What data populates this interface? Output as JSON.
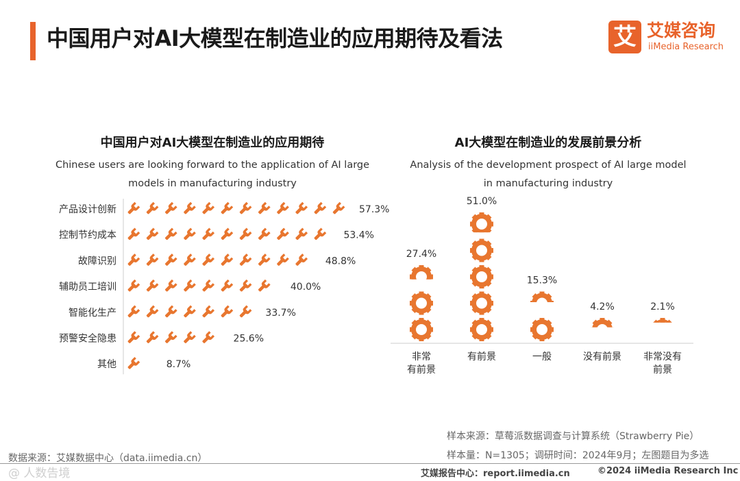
{
  "header": {
    "title": "中国用户对AI大模型在制造业的应用期待及看法",
    "logo_mark": "艾",
    "logo_cn": "艾媒咨询",
    "logo_en": "iiMedia Research"
  },
  "colors": {
    "accent": "#e8632b",
    "icon": "#e8762f",
    "axis": "#cccccc"
  },
  "chart_data": [
    {
      "type": "bar",
      "title": "中国用户对AI大模型在制造业的应用期待",
      "subtitle_line1": "Chinese users are looking forward to the application of AI large",
      "subtitle_line2": "models in manufacturing industry",
      "orientation": "horizontal",
      "marker": "wrench-icon",
      "categories": [
        "产品设计创新",
        "控制节约成本",
        "故障识别",
        "辅助员工培训",
        "智能化生产",
        "预警安全隐患",
        "其他"
      ],
      "values": [
        57.3,
        53.4,
        48.8,
        40.0,
        33.7,
        25.6,
        8.7
      ],
      "labels": [
        "57.3%",
        "53.4%",
        "48.8%",
        "40.0%",
        "33.7%",
        "25.6%",
        "8.7%"
      ],
      "unit": "%",
      "icon_unit": 4.7
    },
    {
      "type": "bar",
      "title": "AI大模型在制造业的发展前景分析",
      "subtitle_line1": "Analysis of the development prospect of AI large model",
      "subtitle_line2": "in  manufacturing industry",
      "orientation": "vertical",
      "marker": "gear-icon",
      "categories": [
        "非常\n有前景",
        "有前景",
        "一般",
        "没有前景",
        "非常没有\n前景"
      ],
      "values": [
        27.4,
        51.0,
        15.3,
        4.2,
        2.1
      ],
      "labels": [
        "27.4%",
        "51.0%",
        "15.3%",
        "4.2%",
        "2.1%"
      ],
      "unit": "%",
      "icon_unit": 10.5
    }
  ],
  "notes": {
    "source_right": "样本来源：草莓派数据调查与计算系统（Strawberry Pie）",
    "sample_info": "样本量：N=1305；调研时间：2024年9月；左图题目为多选",
    "data_source": "数据来源：艾媒数据中心（data.iimedia.cn）"
  },
  "footer": {
    "report_center": "艾媒报告中心：report.iimedia.cn",
    "copyright": "©2024  iiMedia Research  Inc",
    "watermark": "@ 人数告境"
  }
}
